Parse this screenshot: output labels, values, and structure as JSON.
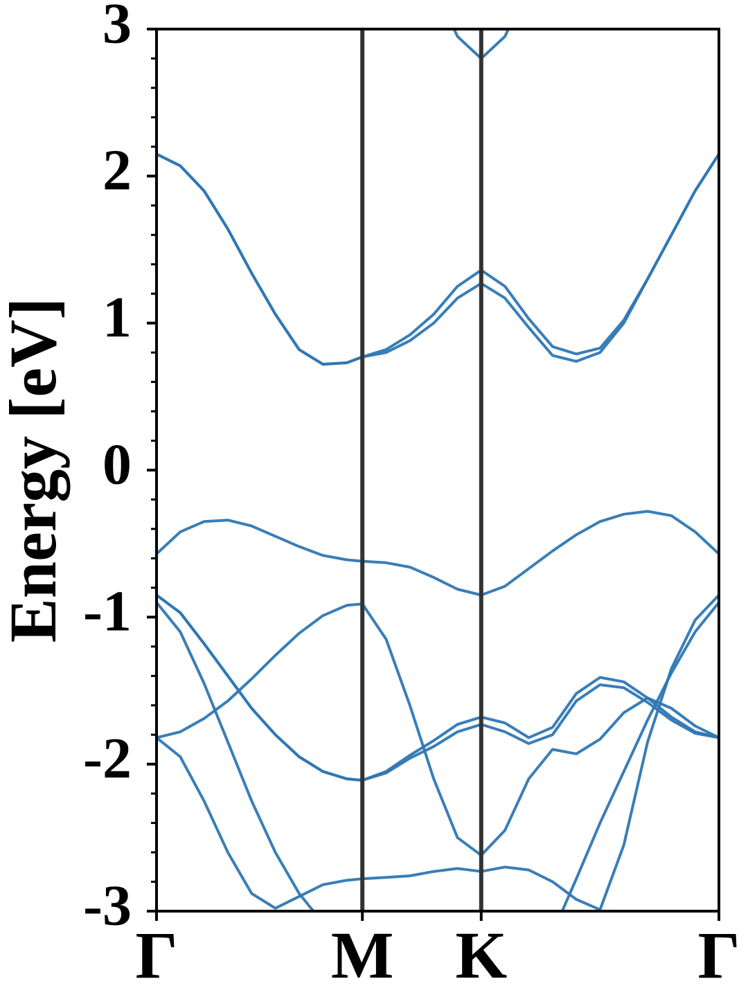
{
  "chart_data": {
    "type": "line",
    "ylabel": "Energy [eV]",
    "color": "#2e77b3",
    "xlim": [
      0,
      2.366
    ],
    "ylim": [
      -3,
      3
    ],
    "xticks": [
      {
        "value": 0,
        "label": "Γ"
      },
      {
        "value": 0.866,
        "label": "M"
      },
      {
        "value": 1.366,
        "label": "K"
      },
      {
        "value": 2.366,
        "label": "Γ"
      }
    ],
    "yticks": [
      -3,
      -2,
      -1,
      0,
      1,
      2,
      3
    ],
    "yminorticks": [
      -2.8,
      -2.6,
      -2.4,
      -2.2,
      -1.8,
      -1.6,
      -1.4,
      -1.2,
      -0.8,
      -0.6,
      -0.4,
      -0.2,
      0.2,
      0.4,
      0.6,
      0.8,
      1.2,
      1.4,
      1.6,
      1.8,
      2.2,
      2.4,
      2.6,
      2.8
    ],
    "xgrid": true,
    "x": [
      0,
      0.1,
      0.2,
      0.3,
      0.4,
      0.5,
      0.6,
      0.7,
      0.8,
      0.866,
      0.966,
      1.066,
      1.166,
      1.266,
      1.366,
      1.466,
      1.566,
      1.666,
      1.766,
      1.866,
      1.966,
      2.066,
      2.166,
      2.266,
      2.366
    ],
    "series": [
      {
        "values": [
          2.15,
          2.07,
          1.9,
          1.64,
          1.34,
          1.06,
          0.82,
          0.72,
          0.73,
          0.77,
          0.8,
          0.88,
          1.0,
          1.17,
          1.27,
          1.17,
          0.97,
          0.78,
          0.74,
          0.8,
          1.0,
          1.3,
          1.6,
          1.9,
          2.15
        ]
      },
      {
        "values": [
          2.15,
          2.07,
          1.9,
          1.64,
          1.34,
          1.06,
          0.82,
          0.72,
          0.73,
          0.77,
          0.82,
          0.92,
          1.06,
          1.25,
          1.36,
          1.25,
          1.03,
          0.84,
          0.79,
          0.83,
          1.02,
          1.3,
          1.6,
          1.9,
          2.15
        ]
      },
      {
        "values": [
          null,
          null,
          null,
          null,
          null,
          null,
          null,
          null,
          null,
          null,
          null,
          null,
          3.3,
          2.95,
          2.8,
          2.95,
          3.3,
          null,
          null,
          null,
          null,
          null,
          null,
          null,
          null
        ]
      },
      {
        "values": [
          -0.57,
          -0.42,
          -0.35,
          -0.34,
          -0.38,
          -0.45,
          -0.52,
          -0.58,
          -0.61,
          -0.62,
          -0.63,
          -0.66,
          -0.73,
          -0.81,
          -0.85,
          -0.79,
          -0.67,
          -0.55,
          -0.44,
          -0.35,
          -0.3,
          -0.28,
          -0.31,
          -0.42,
          -0.57
        ]
      },
      {
        "values": [
          -1.82,
          -1.78,
          -1.69,
          -1.57,
          -1.42,
          -1.26,
          -1.11,
          -0.99,
          -0.92,
          -0.91,
          -1.15,
          -1.6,
          -2.1,
          -2.5,
          -2.62,
          -2.45,
          -2.1,
          -1.9,
          -1.93,
          -1.83,
          -1.65,
          -1.55,
          -1.62,
          -1.74,
          -1.82
        ]
      },
      {
        "values": [
          -0.85,
          -0.97,
          -1.18,
          -1.4,
          -1.62,
          -1.8,
          -1.95,
          -2.05,
          -2.1,
          -2.11,
          -2.05,
          -1.94,
          -1.84,
          -1.73,
          -1.68,
          -1.72,
          -1.82,
          -1.75,
          -1.52,
          -1.41,
          -1.44,
          -1.55,
          -1.68,
          -1.78,
          -1.82
        ]
      },
      {
        "values": [
          -0.85,
          -0.97,
          -1.18,
          -1.4,
          -1.62,
          -1.8,
          -1.95,
          -2.05,
          -2.1,
          -2.11,
          -2.06,
          -1.96,
          -1.88,
          -1.78,
          -1.73,
          -1.78,
          -1.86,
          -1.8,
          -1.57,
          -1.46,
          -1.48,
          -1.58,
          -1.7,
          -1.79,
          -1.82
        ]
      },
      {
        "values": [
          -0.9,
          -1.1,
          -1.45,
          -1.85,
          -2.25,
          -2.6,
          -2.88,
          -3.08,
          null,
          null,
          null,
          null,
          null,
          null,
          null,
          null,
          null,
          -3.15,
          -2.78,
          -2.4,
          -2.05,
          -1.7,
          -1.38,
          -1.1,
          -0.9
        ]
      },
      {
        "values": [
          -1.82,
          -1.95,
          -2.25,
          -2.6,
          -2.88,
          -2.98,
          -2.9,
          -2.82,
          -2.79,
          -2.78,
          -2.77,
          -2.76,
          -2.73,
          -2.71,
          -2.73,
          -2.7,
          -2.72,
          -2.8,
          -2.92,
          -2.99,
          -2.55,
          -1.85,
          -1.35,
          -1.02,
          -0.85
        ]
      }
    ]
  }
}
